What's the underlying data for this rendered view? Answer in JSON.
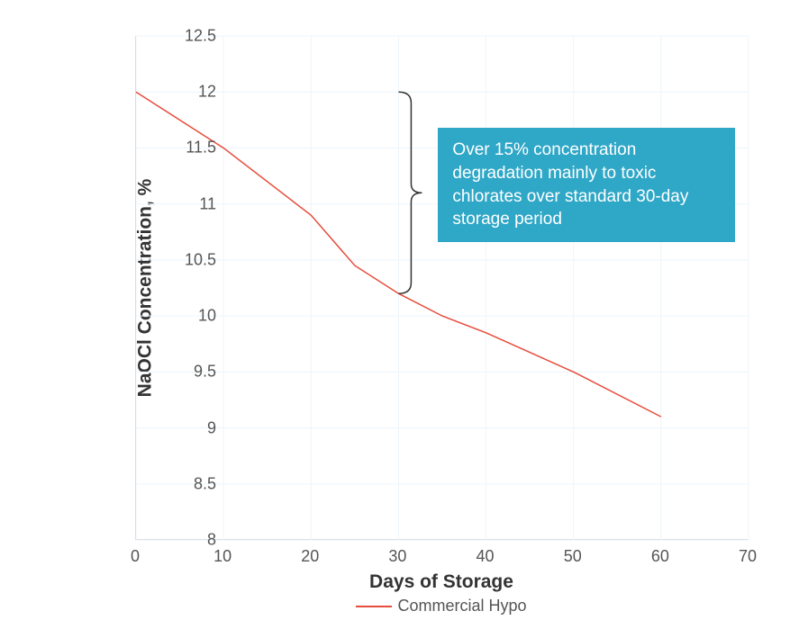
{
  "chart": {
    "type": "line",
    "xlabel": "Days of Storage",
    "ylabel": "NaOCl Concentration, %",
    "label_fontsize": 21,
    "tick_fontsize": 18,
    "xlim": [
      0,
      70
    ],
    "ylim": [
      8,
      12.5
    ],
    "xticks": [
      0,
      10,
      20,
      30,
      40,
      50,
      60,
      70
    ],
    "yticks": [
      8,
      8.5,
      9,
      9.5,
      10,
      10.5,
      11,
      11.5,
      12,
      12.5
    ],
    "background_color": "#ffffff",
    "grid_color": "#eef5fb",
    "axis_color": "#c8c8c8",
    "text_color": "#555555",
    "series": [
      {
        "name": "Commercial Hypo",
        "color": "#e74c3c",
        "line_width": 1.5,
        "x": [
          0,
          10,
          20,
          25,
          30,
          35,
          40,
          50,
          60
        ],
        "y": [
          12.0,
          11.5,
          10.9,
          10.45,
          10.2,
          10.0,
          9.85,
          9.5,
          9.1
        ]
      }
    ],
    "annotation": {
      "text": "Over 15% concentration degradation mainly to toxic chlorates over standard 30-day storage period",
      "text_color": "#ffffff",
      "bg_color": "#2fa7c7",
      "fontsize": 19,
      "bracket": {
        "x": 30,
        "y_top": 12.0,
        "y_bot": 10.2,
        "stroke": "#333333",
        "stroke_width": 1.5
      }
    },
    "legend": {
      "position": "bottom",
      "items": [
        {
          "label": "Commercial Hypo",
          "color": "#e74c3c"
        }
      ]
    }
  }
}
